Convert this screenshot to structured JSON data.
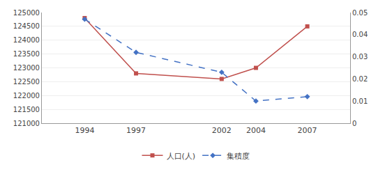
{
  "chart_data": {
    "type": "line",
    "x": [
      1994,
      1997,
      2002,
      2004,
      2007
    ],
    "xlim": [
      1991.5,
      2009.5
    ],
    "xticks": [
      1994,
      1997,
      2002,
      2004,
      2007
    ],
    "ylim": [
      121000,
      125000
    ],
    "yticks": [
      121000,
      121500,
      122000,
      122500,
      123000,
      123500,
      124000,
      124500,
      125000
    ],
    "y2lim": [
      0,
      0.05
    ],
    "y2ticks": [
      0,
      0.01,
      0.02,
      0.03,
      0.04,
      0.05
    ],
    "grid": true,
    "legend": "bottom",
    "series": [
      {
        "name": "人口(人)",
        "color": "#c0504d",
        "marker": "square",
        "line_style": "solid",
        "values": [
          124800,
          122800,
          122600,
          123000,
          124500
        ]
      },
      {
        "name": "集積度",
        "color": "#4472c4",
        "marker": "diamond",
        "line_style": "dashed",
        "axis": "y2",
        "values": [
          0.047,
          0.032,
          0.023,
          0.01,
          0.012
        ]
      }
    ]
  }
}
